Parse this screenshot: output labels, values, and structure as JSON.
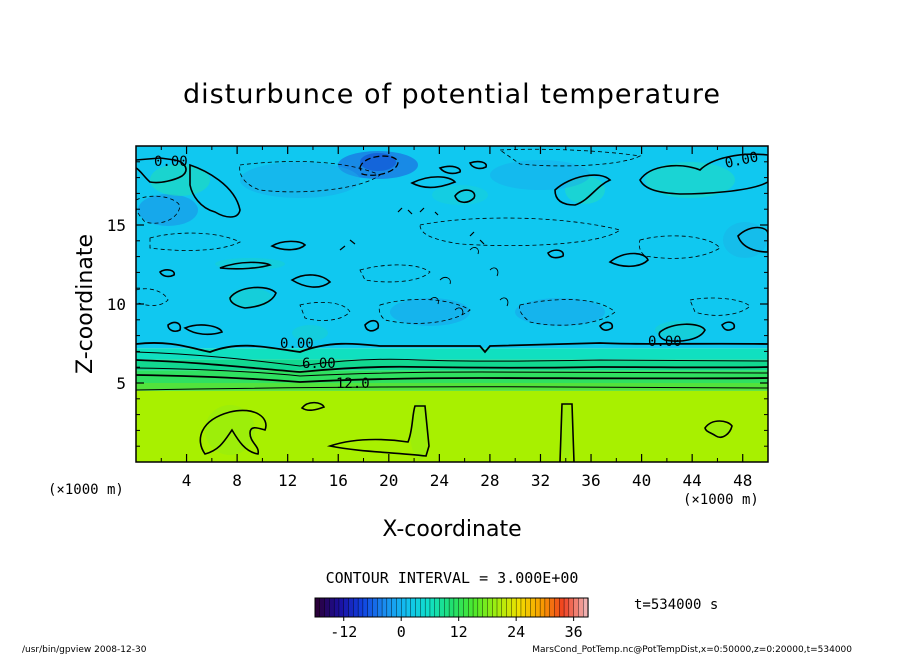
{
  "chart_data": {
    "type": "heatmap",
    "title": "disturbunce of potential temperature",
    "xlabel": "X-coordinate",
    "ylabel": "Z-coordinate",
    "x_unit_left": "(×1000 m)",
    "x_unit_right": "(×1000 m)",
    "xlim": [
      0,
      50
    ],
    "ylim": [
      0,
      20
    ],
    "x_ticks": [
      "4",
      "8",
      "12",
      "16",
      "20",
      "24",
      "28",
      "32",
      "36",
      "40",
      "44",
      "48"
    ],
    "y_ticks": [
      "5",
      "10",
      "15"
    ],
    "contour_interval_text": "CONTOUR INTERVAL = 3.000E+00",
    "contour_labels": [
      "0.00",
      "0.00",
      "0.00",
      "0.00",
      "6.00",
      "12.0"
    ],
    "colorbar": {
      "range": [
        -18,
        39
      ],
      "ticks": [
        "-12",
        "0",
        "12",
        "24",
        "36"
      ],
      "colors": [
        "#2a003a",
        "#1b0fa0",
        "#1040e0",
        "#1a8cf0",
        "#12c0f0",
        "#10e0c8",
        "#20e070",
        "#4ce82c",
        "#a0ee10",
        "#f0e000",
        "#f8a000",
        "#f04020",
        "#f0b0b0"
      ]
    },
    "time_text": "t=534000 s",
    "bands": [
      {
        "z_min": 0,
        "z_max": 4.5,
        "value": 21,
        "color": "#a8f000"
      },
      {
        "z_min": 4.5,
        "z_max": 5.0,
        "value": 15,
        "color": "#52e23c"
      },
      {
        "z_min": 5.0,
        "z_max": 5.8,
        "value": 12,
        "color": "#30e060"
      },
      {
        "z_min": 5.8,
        "z_max": 6.5,
        "value": 6,
        "color": "#12d890"
      },
      {
        "z_min": 6.5,
        "z_max": 7.2,
        "value": 3,
        "color": "#10e0c0"
      },
      {
        "z_min": 7.2,
        "z_max": 20,
        "value": 0,
        "color": "#10c8f0"
      }
    ],
    "footer_left": "/usr/bin/gpview   2008-12-30",
    "footer_right": "MarsCond_PotTemp.nc@PotTempDist,x=0:50000,z=0:20000,t=534000"
  }
}
